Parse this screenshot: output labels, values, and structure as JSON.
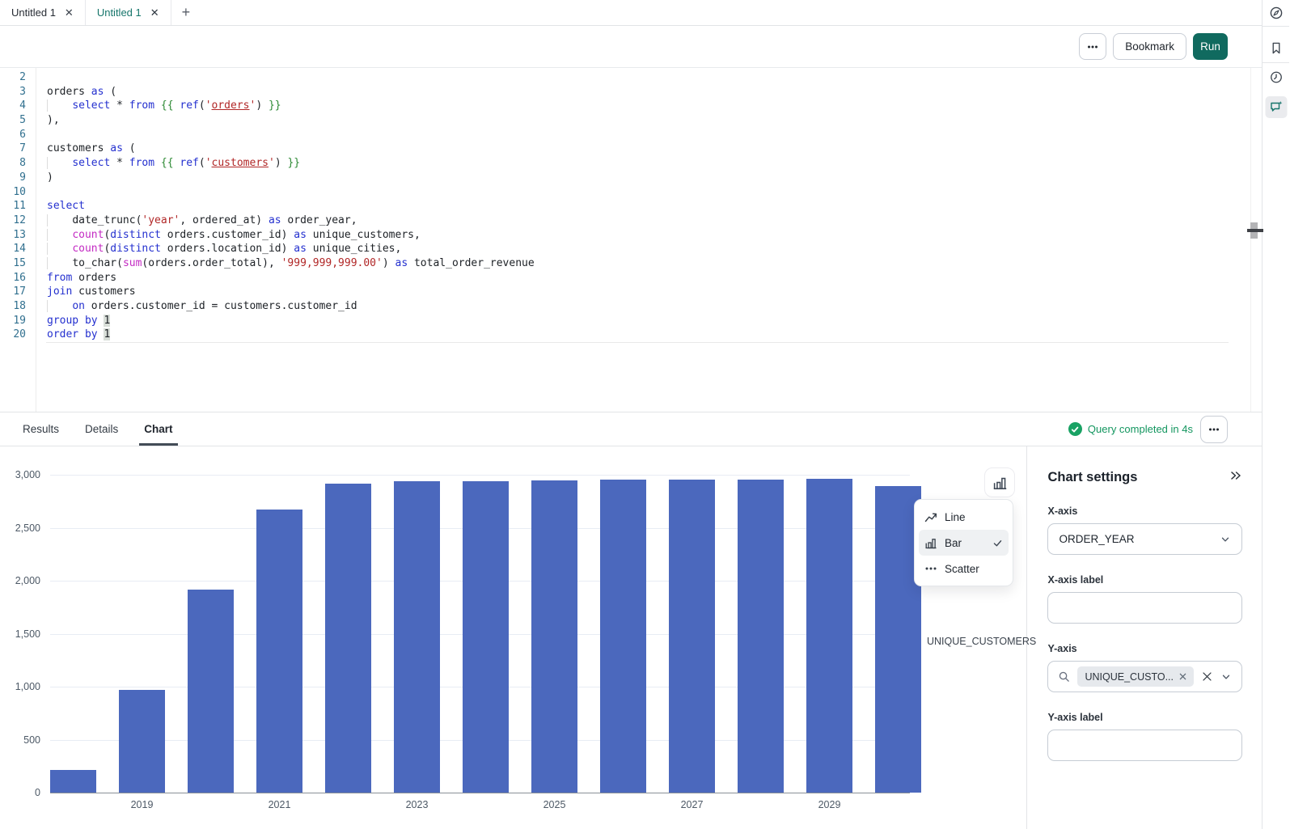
{
  "tab_bar": {
    "tabs": [
      {
        "label": "Untitled 1",
        "active": false
      },
      {
        "label": "Untitled 1",
        "active": true
      }
    ],
    "close_glyph": "✕",
    "new_tab_glyph": "+"
  },
  "toolbar": {
    "more_icon": "ellipsis-icon",
    "bookmark": "Bookmark",
    "run": "Run",
    "run_color": "#106a5f"
  },
  "right_rail": {
    "icons": [
      "compass-icon",
      "bookmark-icon",
      "history-clock-icon",
      "chat-sparkle-icon"
    ],
    "active_icon": "chat-sparkle-icon",
    "accent": "#16756b"
  },
  "editor": {
    "lines": [
      {
        "n": "2",
        "t": []
      },
      {
        "n": "3",
        "t": [
          [
            "orders ",
            "p"
          ],
          [
            "as",
            "k"
          ],
          [
            " (",
            "p"
          ]
        ]
      },
      {
        "n": "4",
        "t": [
          [
            "    ",
            "in"
          ],
          [
            "select",
            "k"
          ],
          [
            " * ",
            "p"
          ],
          [
            "from",
            "k"
          ],
          [
            " ",
            "p"
          ],
          [
            "{{",
            "j"
          ],
          [
            " ",
            "p"
          ],
          [
            "ref",
            "k"
          ],
          [
            "(",
            "p"
          ],
          [
            "'",
            "s"
          ],
          [
            "orders",
            "sl"
          ],
          [
            "'",
            "s"
          ],
          [
            ")",
            "p"
          ],
          [
            " ",
            "p"
          ],
          [
            "}}",
            "j"
          ]
        ]
      },
      {
        "n": "5",
        "t": [
          [
            "),",
            "p"
          ]
        ]
      },
      {
        "n": "6",
        "t": []
      },
      {
        "n": "7",
        "t": [
          [
            "customers ",
            "p"
          ],
          [
            "as",
            "k"
          ],
          [
            " (",
            "p"
          ]
        ]
      },
      {
        "n": "8",
        "t": [
          [
            "    ",
            "in"
          ],
          [
            "select",
            "k"
          ],
          [
            " * ",
            "p"
          ],
          [
            "from",
            "k"
          ],
          [
            " ",
            "p"
          ],
          [
            "{{",
            "j"
          ],
          [
            " ",
            "p"
          ],
          [
            "ref",
            "k"
          ],
          [
            "(",
            "p"
          ],
          [
            "'",
            "s"
          ],
          [
            "customers",
            "sl"
          ],
          [
            "'",
            "s"
          ],
          [
            ")",
            "p"
          ],
          [
            " ",
            "p"
          ],
          [
            "}}",
            "j"
          ]
        ]
      },
      {
        "n": "9",
        "t": [
          [
            ")",
            "p"
          ]
        ]
      },
      {
        "n": "10",
        "t": []
      },
      {
        "n": "11",
        "t": [
          [
            "select",
            "k"
          ]
        ]
      },
      {
        "n": "12",
        "t": [
          [
            "    ",
            "in"
          ],
          [
            "date_trunc(",
            "p"
          ],
          [
            "'year'",
            "s"
          ],
          [
            ", ordered_at) ",
            "p"
          ],
          [
            "as",
            "k"
          ],
          [
            " order_year,",
            "p"
          ]
        ]
      },
      {
        "n": "13",
        "t": [
          [
            "    ",
            "in"
          ],
          [
            "count",
            "f"
          ],
          [
            "(",
            "p"
          ],
          [
            "distinct",
            "k"
          ],
          [
            " orders.customer_id) ",
            "p"
          ],
          [
            "as",
            "k"
          ],
          [
            " unique_customers,",
            "p"
          ]
        ]
      },
      {
        "n": "14",
        "t": [
          [
            "    ",
            "in"
          ],
          [
            "count",
            "f"
          ],
          [
            "(",
            "p"
          ],
          [
            "distinct",
            "k"
          ],
          [
            " orders.location_id) ",
            "p"
          ],
          [
            "as",
            "k"
          ],
          [
            " unique_cities,",
            "p"
          ]
        ]
      },
      {
        "n": "15",
        "t": [
          [
            "    ",
            "in"
          ],
          [
            "to_char(",
            "p"
          ],
          [
            "sum",
            "f"
          ],
          [
            "(orders.order_total), ",
            "p"
          ],
          [
            "'999,999,999.00'",
            "s"
          ],
          [
            ") ",
            "p"
          ],
          [
            "as",
            "k"
          ],
          [
            " total_order_revenue",
            "p"
          ]
        ]
      },
      {
        "n": "16",
        "t": [
          [
            "from",
            "k"
          ],
          [
            " orders",
            "p"
          ]
        ]
      },
      {
        "n": "17",
        "t": [
          [
            "join",
            "k"
          ],
          [
            " customers",
            "p"
          ]
        ]
      },
      {
        "n": "18",
        "t": [
          [
            "    ",
            "in"
          ],
          [
            "on",
            "k"
          ],
          [
            " orders.customer_id = customers.customer_id",
            "p"
          ]
        ]
      },
      {
        "n": "19",
        "t": [
          [
            "group by",
            "k"
          ],
          [
            " ",
            "p"
          ],
          [
            "1",
            "hl"
          ]
        ]
      },
      {
        "n": "20",
        "t": [
          [
            "order by",
            "k"
          ],
          [
            " ",
            "p"
          ],
          [
            "1",
            "hl"
          ]
        ]
      }
    ]
  },
  "results_bar": {
    "tabs": [
      "Results",
      "Details",
      "Chart"
    ],
    "active_tab": "Chart",
    "status": "Query completed in 4s",
    "status_color": "#13965f",
    "more_icon": "ellipsis-icon"
  },
  "chart_menu": {
    "button_icon": "bar-chart-icon",
    "items": [
      {
        "label": "Line",
        "icon": "line-chart-icon",
        "selected": false
      },
      {
        "label": "Bar",
        "icon": "bar-chart-icon",
        "selected": true
      },
      {
        "label": "Scatter",
        "icon": "scatter-icon",
        "selected": false
      }
    ]
  },
  "chart_settings": {
    "title": "Chart settings",
    "collapse_icon": "double-chevron-right-icon",
    "x_axis": {
      "label": "X-axis",
      "value": "ORDER_YEAR"
    },
    "x_axis_label": {
      "label": "X-axis label",
      "value": ""
    },
    "y_axis": {
      "label": "Y-axis",
      "chip": "UNIQUE_CUSTO...",
      "search_icon": "search-icon",
      "clear_icon": "x-icon"
    },
    "y_axis_label": {
      "label": "Y-axis label",
      "value": ""
    }
  },
  "chart_data": {
    "type": "bar",
    "categories": [
      "2018",
      "2019",
      "2020",
      "2021",
      "2022",
      "2023",
      "2024",
      "2025",
      "2026",
      "2027",
      "2028",
      "2029",
      "2030"
    ],
    "values": [
      214,
      970,
      1916,
      2672,
      2916,
      2939,
      2939,
      2947,
      2954,
      2954,
      2954,
      2962,
      2893
    ],
    "series_label": "UNIQUE_CUSTOMERS",
    "x_tick_labels": [
      "2019",
      "2021",
      "2023",
      "2025",
      "2027",
      "2029"
    ],
    "y_tick_values": [
      0,
      500,
      1000,
      1500,
      2000,
      2500,
      3000
    ],
    "y_tick_labels": [
      "0",
      "500",
      "1,000",
      "1,500",
      "2,000",
      "2,500",
      "3,000"
    ],
    "ylim": [
      0,
      3000
    ],
    "grid": true,
    "bar_color": "#4b68bd",
    "legend_position": "right"
  }
}
